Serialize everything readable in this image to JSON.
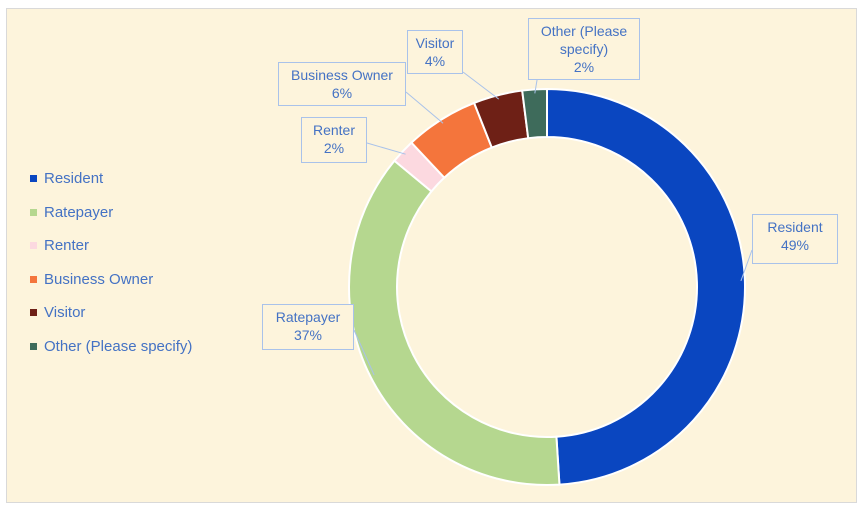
{
  "chart_data": {
    "type": "doughnut",
    "categories": [
      "Resident",
      "Ratepayer",
      "Renter",
      "Business Owner",
      "Visitor",
      "Other (Please specify)"
    ],
    "values": [
      49,
      37,
      2,
      6,
      4,
      2
    ],
    "value_labels": [
      "49%",
      "37%",
      "2%",
      "6%",
      "4%",
      "2%"
    ],
    "colors": [
      "#0a46c0",
      "#b5d78f",
      "#fcd9e0",
      "#f4753c",
      "#6e2016",
      "#3e6b5b"
    ],
    "legend": "left"
  }
}
